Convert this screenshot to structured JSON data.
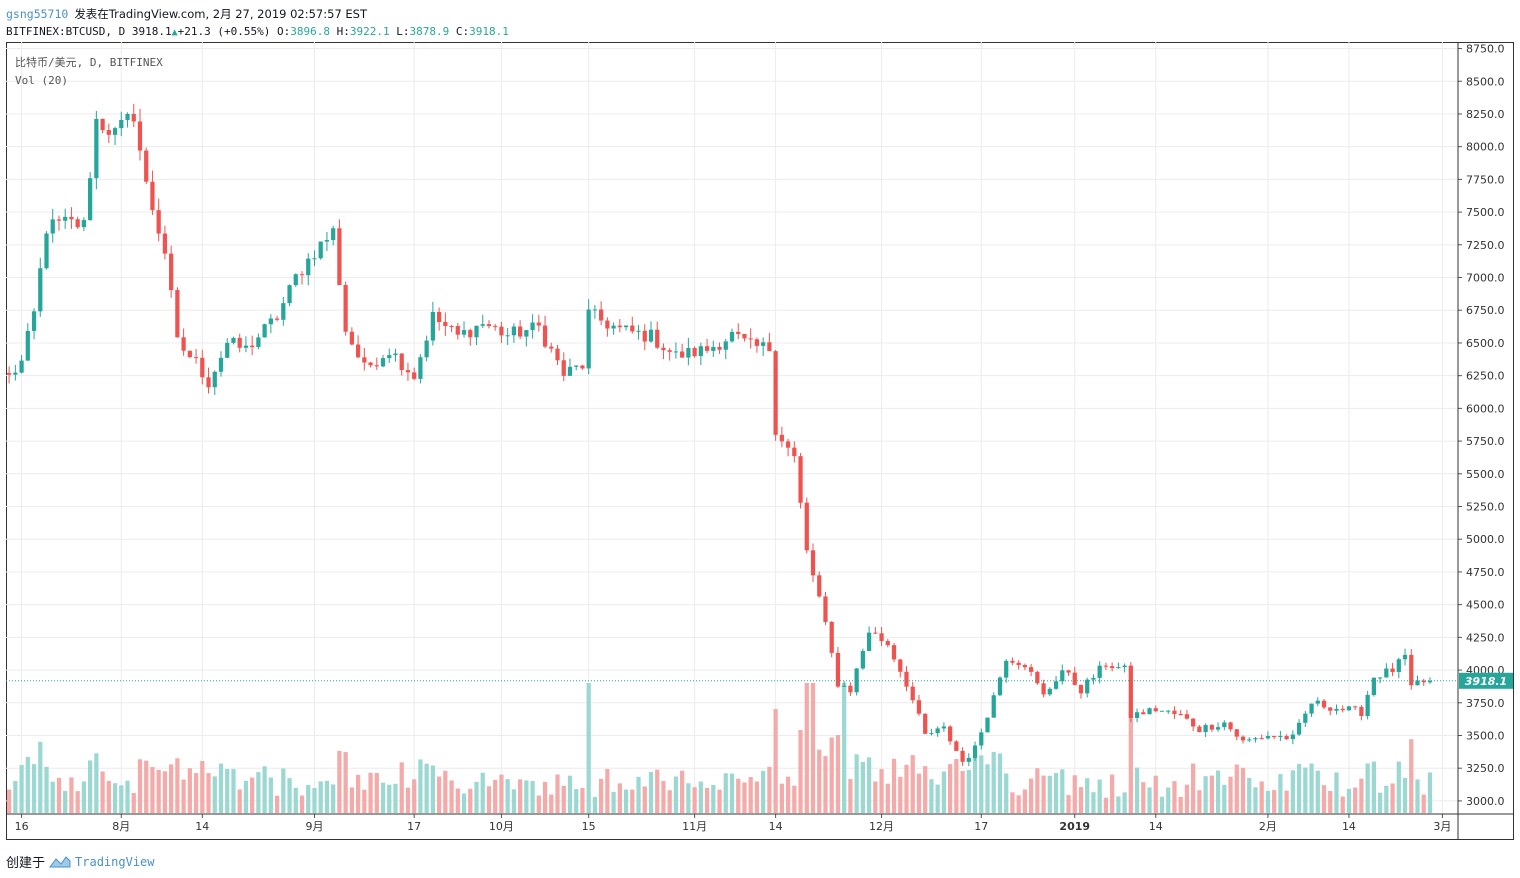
{
  "header": {
    "username": "gsng55710",
    "published_text": "发表在TradingView.com, 2月 27, 2019 02:57:57 EST"
  },
  "quote": {
    "symbol": "BITFINEX:BTCUSD, D",
    "last": "3918.1",
    "change": "+21.3 (+0.55%)",
    "o_label": "O:",
    "o": "3896.8",
    "h_label": "H:",
    "h": "3922.1",
    "l_label": "L:",
    "l": "3878.9",
    "c_label": "C:",
    "c": "3918.1"
  },
  "legend": {
    "series": "比特币/美元, D, BITFINEX",
    "volume": "Vol (20)"
  },
  "footer": {
    "created_with": "创建于",
    "brand": "TradingView"
  },
  "colors": {
    "up": "#26a69a",
    "down": "#ef5350",
    "up_volume": "#9bd8d1",
    "down_volume": "#f3aaa9",
    "last_price": "#26a69a",
    "grid": "#ececec"
  },
  "chart_data": {
    "type": "candlestick",
    "symbol": "BTCUSD",
    "exchange": "BITFINEX",
    "interval": "1D",
    "price_axis": {
      "ticks": [
        3000,
        3250,
        3500,
        3750,
        4000,
        4250,
        4500,
        4750,
        5000,
        5250,
        5500,
        5750,
        6000,
        6250,
        6500,
        6750,
        7000,
        7250,
        7500,
        7750,
        8000,
        8250,
        8500,
        8750
      ],
      "tick_labels": [
        "3000.0",
        "3250.0",
        "3500.0",
        "3750.0",
        "4000.0",
        "4250.0",
        "4500.0",
        "4750.0",
        "5000.0",
        "5250.0",
        "5500.0",
        "5750.0",
        "6000.0",
        "6250.0",
        "6500.0",
        "6750.0",
        "7000.0",
        "7250.0",
        "7500.0",
        "7750.0",
        "8000.0",
        "8250.0",
        "8500.0",
        "8750.0"
      ],
      "range": [
        2900,
        8800
      ]
    },
    "time_axis": {
      "ticks": [
        {
          "label": "16",
          "date": "2018-07-16"
        },
        {
          "label": "8月",
          "date": "2018-08-01"
        },
        {
          "label": "14",
          "date": "2018-08-14"
        },
        {
          "label": "9月",
          "date": "2018-09-01"
        },
        {
          "label": "17",
          "date": "2018-09-17"
        },
        {
          "label": "10月",
          "date": "2018-10-01"
        },
        {
          "label": "15",
          "date": "2018-10-15"
        },
        {
          "label": "11月",
          "date": "2018-11-01"
        },
        {
          "label": "14",
          "date": "2018-11-14"
        },
        {
          "label": "12月",
          "date": "2018-12-01"
        },
        {
          "label": "17",
          "date": "2018-12-17"
        },
        {
          "label": "2019",
          "date": "2019-01-01"
        },
        {
          "label": "14",
          "date": "2019-01-14"
        },
        {
          "label": "2月",
          "date": "2019-02-01"
        },
        {
          "label": "14",
          "date": "2019-02-14"
        },
        {
          "label": "3月",
          "date": "2019-03-01"
        }
      ],
      "range": [
        "2018-07-14",
        "2019-03-04"
      ]
    },
    "last_price": 3918.1,
    "last_price_label": "3918.1",
    "keypoints": [
      [
        "2018-07-14",
        6240
      ],
      [
        "2018-07-16",
        6350
      ],
      [
        "2018-07-18",
        6720
      ],
      [
        "2018-07-20",
        7380
      ],
      [
        "2018-07-23",
        7420
      ],
      [
        "2018-07-26",
        7400
      ],
      [
        "2018-07-28",
        8200
      ],
      [
        "2018-07-31",
        8100
      ],
      [
        "2018-08-03",
        8250
      ],
      [
        "2018-08-05",
        7700
      ],
      [
        "2018-08-08",
        7200
      ],
      [
        "2018-08-10",
        6500
      ],
      [
        "2018-08-13",
        6350
      ],
      [
        "2018-08-15",
        6200
      ],
      [
        "2018-08-18",
        6500
      ],
      [
        "2018-08-21",
        6450
      ],
      [
        "2018-08-26",
        6700
      ],
      [
        "2018-08-29",
        7000
      ],
      [
        "2018-09-01",
        7200
      ],
      [
        "2018-09-04",
        7350
      ],
      [
        "2018-09-06",
        6600
      ],
      [
        "2018-09-09",
        6300
      ],
      [
        "2018-09-13",
        6450
      ],
      [
        "2018-09-17",
        6250
      ],
      [
        "2018-09-20",
        6700
      ],
      [
        "2018-09-24",
        6550
      ],
      [
        "2018-09-28",
        6650
      ],
      [
        "2018-10-02",
        6560
      ],
      [
        "2018-10-07",
        6620
      ],
      [
        "2018-10-11",
        6260
      ],
      [
        "2018-10-14",
        6330
      ],
      [
        "2018-10-15",
        6720
      ],
      [
        "2018-10-20",
        6600
      ],
      [
        "2018-10-25",
        6550
      ],
      [
        "2018-10-29",
        6400
      ],
      [
        "2018-11-03",
        6450
      ],
      [
        "2018-11-07",
        6560
      ],
      [
        "2018-11-10",
        6470
      ],
      [
        "2018-11-13",
        6460
      ],
      [
        "2018-11-14",
        5850
      ],
      [
        "2018-11-17",
        5620
      ],
      [
        "2018-11-19",
        4900
      ],
      [
        "2018-11-21",
        4550
      ],
      [
        "2018-11-24",
        3900
      ],
      [
        "2018-11-26",
        3850
      ],
      [
        "2018-11-29",
        4300
      ],
      [
        "2018-12-02",
        4200
      ],
      [
        "2018-12-05",
        3900
      ],
      [
        "2018-12-08",
        3500
      ],
      [
        "2018-12-11",
        3550
      ],
      [
        "2018-12-14",
        3300
      ],
      [
        "2018-12-16",
        3400
      ],
      [
        "2018-12-19",
        3800
      ],
      [
        "2018-12-21",
        4100
      ],
      [
        "2018-12-24",
        4050
      ],
      [
        "2018-12-27",
        3800
      ],
      [
        "2018-12-30",
        4000
      ],
      [
        "2019-01-02",
        3850
      ],
      [
        "2019-01-06",
        4050
      ],
      [
        "2019-01-09",
        4000
      ],
      [
        "2019-01-10",
        3650
      ],
      [
        "2019-01-14",
        3700
      ],
      [
        "2019-01-18",
        3650
      ],
      [
        "2019-01-21",
        3550
      ],
      [
        "2019-01-25",
        3600
      ],
      [
        "2019-01-28",
        3450
      ],
      [
        "2019-02-01",
        3500
      ],
      [
        "2019-02-05",
        3480
      ],
      [
        "2019-02-08",
        3750
      ],
      [
        "2019-02-13",
        3700
      ],
      [
        "2019-02-16",
        3680
      ],
      [
        "2019-02-18",
        3950
      ],
      [
        "2019-02-21",
        4000
      ],
      [
        "2019-02-23",
        4100
      ],
      [
        "2019-02-24",
        3850
      ],
      [
        "2019-02-25",
        3900
      ],
      [
        "2019-02-27",
        3918
      ]
    ],
    "volume": {
      "label": "Vol (20)",
      "note": "per-day volume bars; colored by candle direction",
      "notable_spikes": [
        "2018-10-15",
        "2018-11-19",
        "2018-11-20",
        "2018-11-25"
      ]
    }
  }
}
